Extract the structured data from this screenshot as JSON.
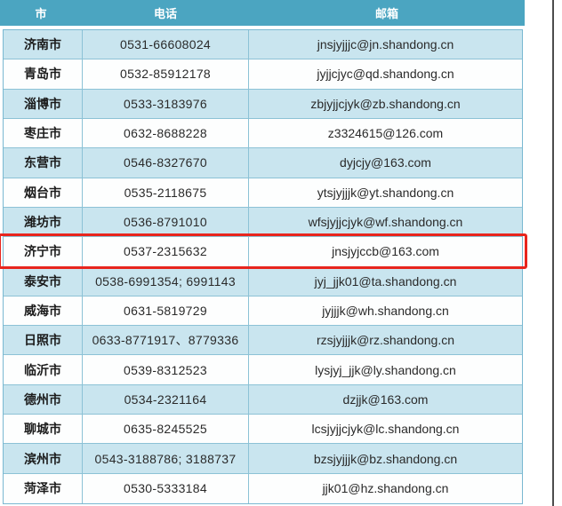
{
  "table": {
    "columns": [
      "市",
      "电话",
      "邮箱"
    ],
    "rows": [
      {
        "city": "济南市",
        "phone": "0531-66608024",
        "email": "jnsjyjjjc@jn.shandong.cn"
      },
      {
        "city": "青岛市",
        "phone": "0532-85912178",
        "email": "jyjjcjyc@qd.shandong.cn"
      },
      {
        "city": "淄博市",
        "phone": "0533-3183976",
        "email": "zbjyjjcjyk@zb.shandong.cn"
      },
      {
        "city": "枣庄市",
        "phone": "0632-8688228",
        "email": "z3324615@126.com"
      },
      {
        "city": "东营市",
        "phone": "0546-8327670",
        "email": "dyjcjy@163.com"
      },
      {
        "city": "烟台市",
        "phone": "0535-2118675",
        "email": "ytsjyjjjk@yt.shandong.cn"
      },
      {
        "city": "潍坊市",
        "phone": "0536-8791010",
        "email": "wfsjyjjcjyk@wf.shandong.cn"
      },
      {
        "city": "济宁市",
        "phone": "0537-2315632",
        "email": "jnsjyjccb@163.com"
      },
      {
        "city": "泰安市",
        "phone": "0538-6991354; 6991143",
        "email": "jyj_jjk01@ta.shandong.cn"
      },
      {
        "city": "威海市",
        "phone": "0631-5819729",
        "email": "jyjjjk@wh.shandong.cn"
      },
      {
        "city": "日照市",
        "phone": "0633-8771917、8779336",
        "email": "rzsjyjjjk@rz.shandong.cn"
      },
      {
        "city": "临沂市",
        "phone": "0539-8312523",
        "email": "lysjyj_jjk@ly.shandong.cn"
      },
      {
        "city": "德州市",
        "phone": "0534-2321164",
        "email": "dzjjk@163.com"
      },
      {
        "city": "聊城市",
        "phone": "0635-8245525",
        "email": "lcsjyjjcjyk@lc.shandong.cn"
      },
      {
        "city": "滨州市",
        "phone": "0543-3188786; 3188737",
        "email": "bzsjyjjjk@bz.shandong.cn"
      },
      {
        "city": "菏泽市",
        "phone": "0530-5333184",
        "email": "jjk01@hz.shandong.cn"
      }
    ],
    "highlighted_row_index": 7,
    "colors": {
      "header_bg": "#4ba5c1",
      "header_text": "#ffffff",
      "row_alt_bg": "#c9e5ef",
      "row_plain_bg": "#fdfefe",
      "grid_border": "#8cc2d6",
      "highlight_border": "#e8251d"
    }
  }
}
